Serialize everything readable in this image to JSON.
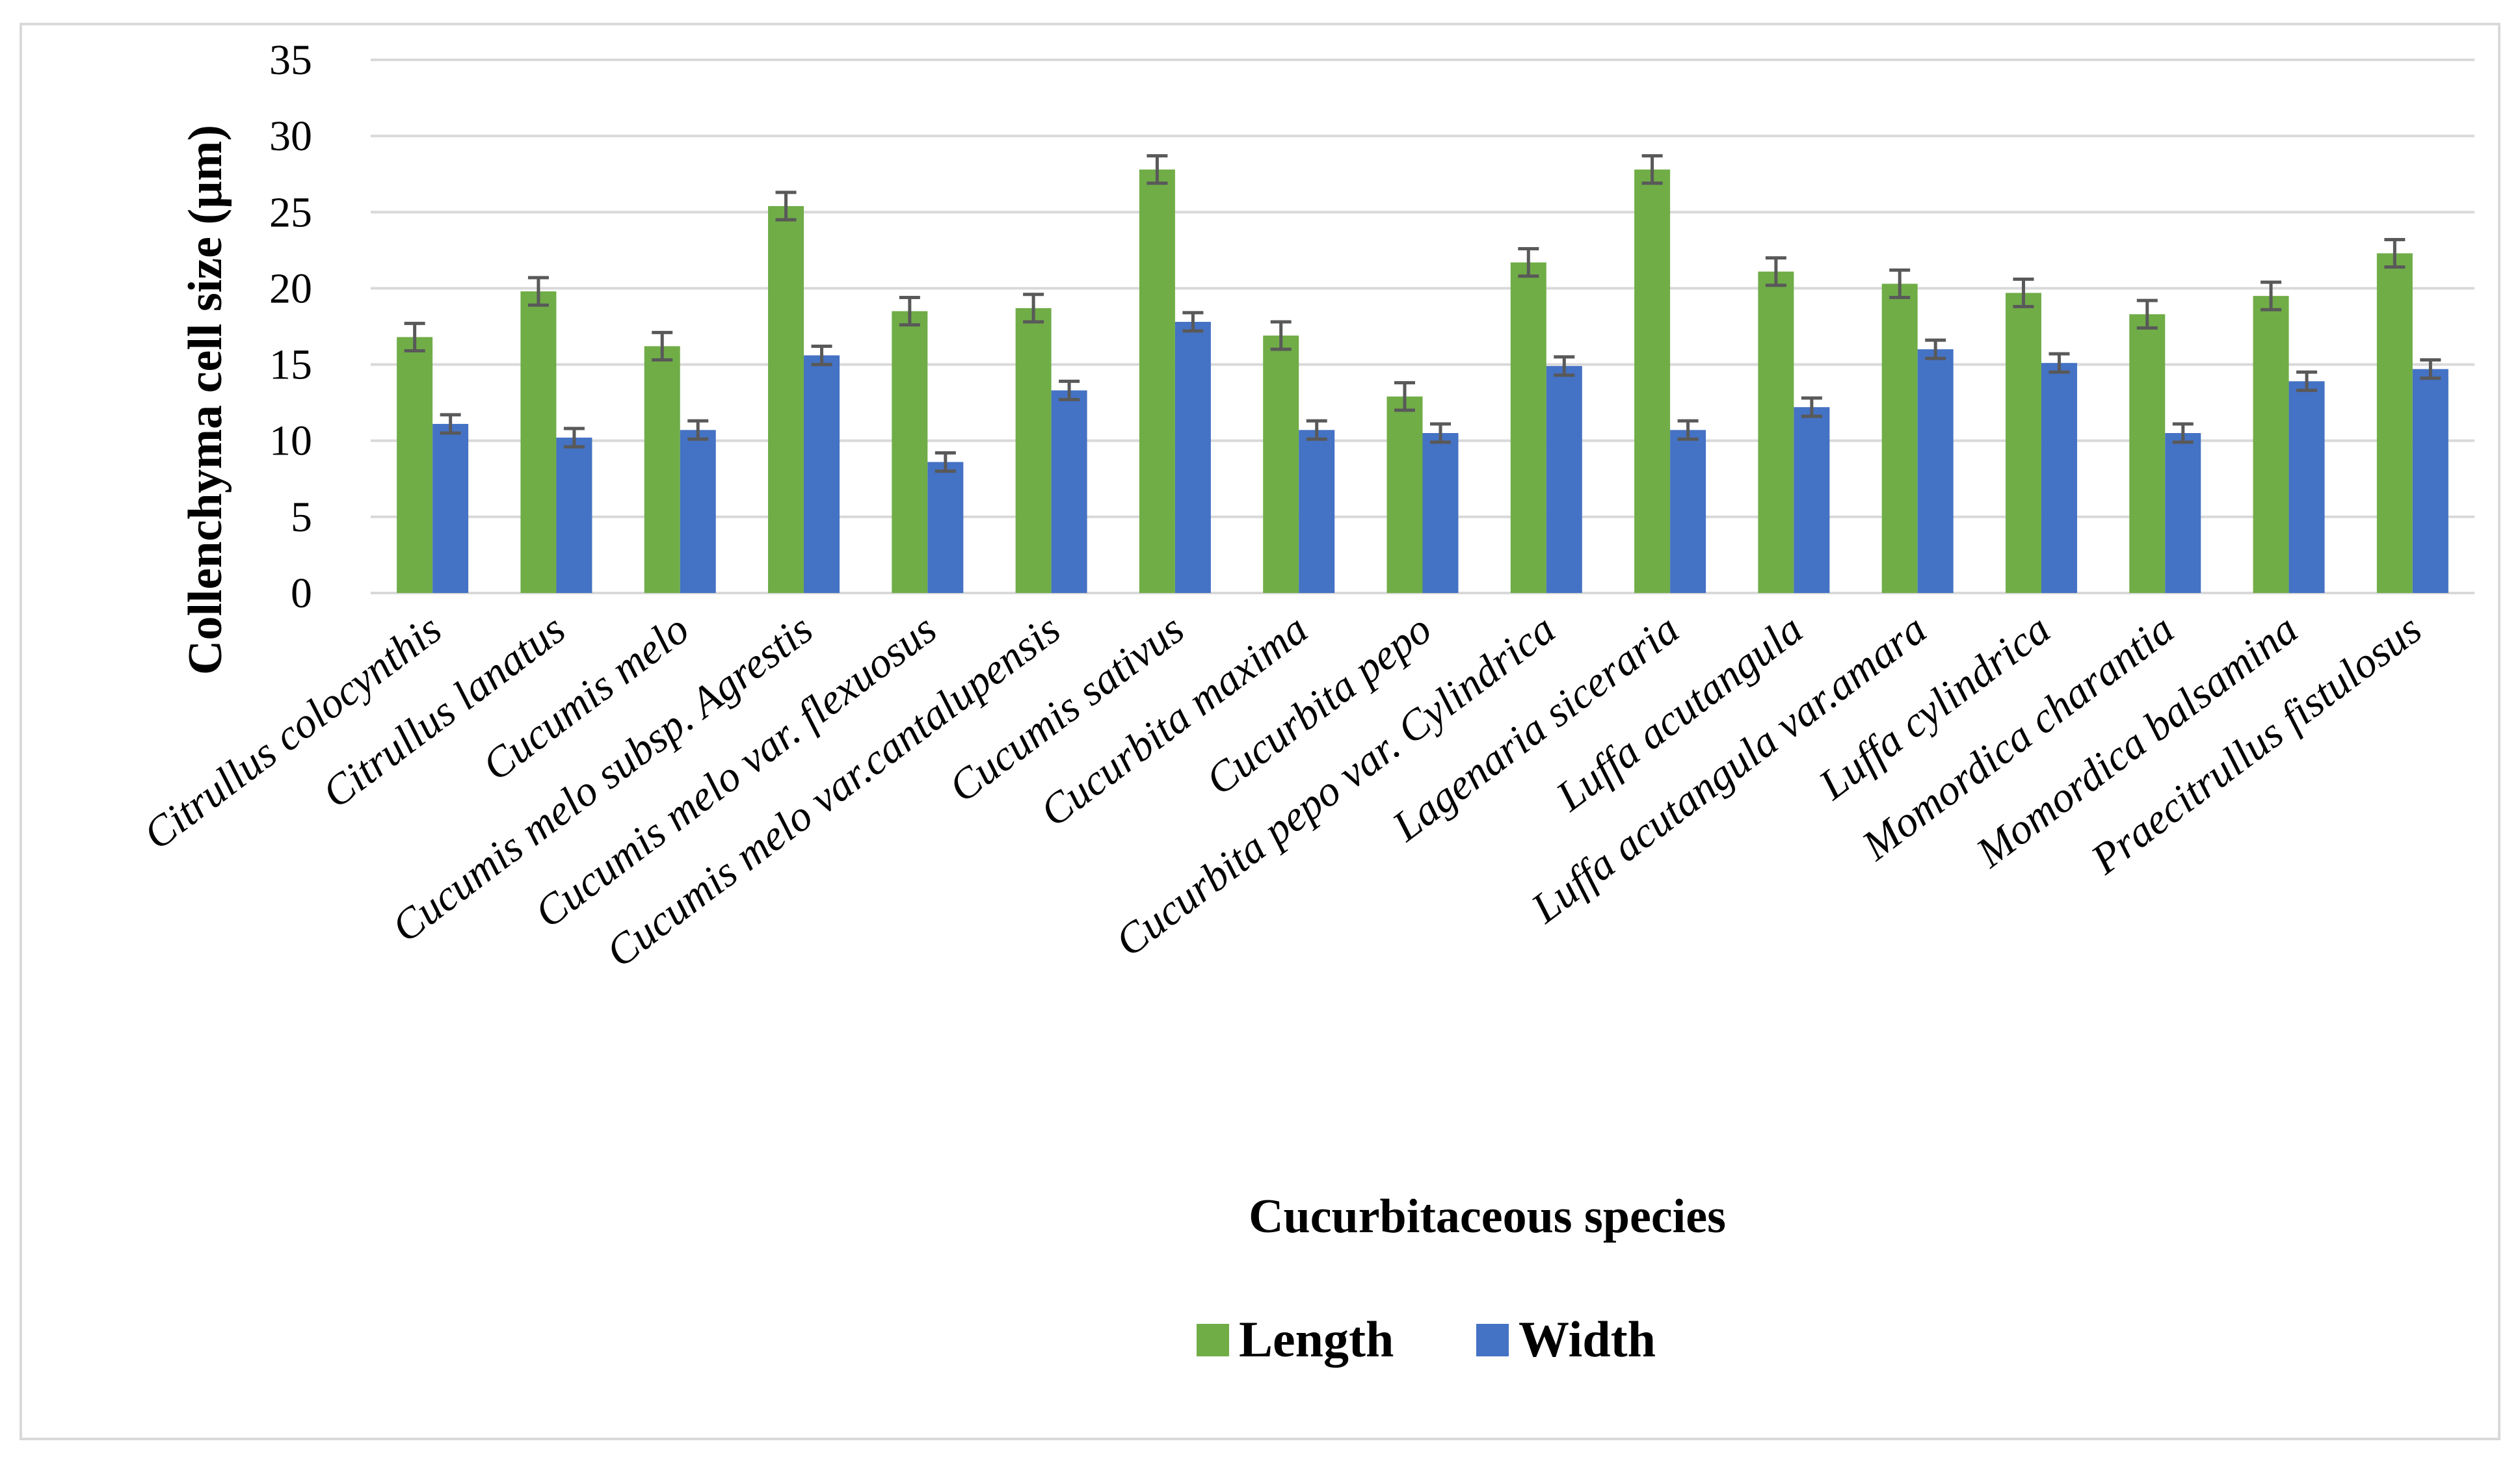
{
  "chart_data": {
    "type": "bar",
    "title": "",
    "xlabel": "Cucurbitaceous species",
    "ylabel": "Collenchyma cell size (µm)",
    "ylim": [
      0,
      35
    ],
    "yticks": [
      0,
      5,
      10,
      15,
      20,
      25,
      30,
      35
    ],
    "grid": true,
    "legend_position": "bottom",
    "categories": [
      "Citrullus colocynthis",
      "Citrullus lanatus",
      "Cucumis melo",
      "Cucumis melo subsp. Agrestis",
      "Cucumis melo var. flexuosus",
      "Cucumis melo var.cantalupensis",
      "Cucumis sativus",
      "Cucurbita maxima",
      "Cucurbita pepo",
      "Cucurbita pepo var. Cylindrica",
      "Lagenaria siceraria",
      "Luffa acutangula",
      "Luffa acutangula var.amara",
      "Luffa cylindrica",
      "Momordica charantia",
      "Momordica balsamina",
      "Praecitrullus fistulosus"
    ],
    "series": [
      {
        "name": "Length",
        "color": "#70ad47",
        "values": [
          16.8,
          19.8,
          16.2,
          25.4,
          18.5,
          18.7,
          27.8,
          16.9,
          12.9,
          21.7,
          27.8,
          21.1,
          20.3,
          19.7,
          18.3,
          19.5,
          22.3
        ],
        "errors": [
          0.9,
          0.9,
          0.9,
          0.9,
          0.9,
          0.9,
          0.9,
          0.9,
          0.9,
          0.9,
          0.9,
          0.9,
          0.9,
          0.9,
          0.9,
          0.9,
          0.9
        ]
      },
      {
        "name": "Width",
        "color": "#4472c4",
        "values": [
          11.1,
          10.2,
          10.7,
          15.6,
          8.6,
          13.3,
          17.8,
          10.7,
          10.5,
          14.9,
          10.7,
          12.2,
          16.0,
          15.1,
          10.5,
          13.9,
          14.7
        ],
        "errors": [
          0.6,
          0.6,
          0.6,
          0.6,
          0.6,
          0.6,
          0.6,
          0.6,
          0.6,
          0.6,
          0.6,
          0.6,
          0.6,
          0.6,
          0.6,
          0.6,
          0.6
        ]
      }
    ]
  }
}
